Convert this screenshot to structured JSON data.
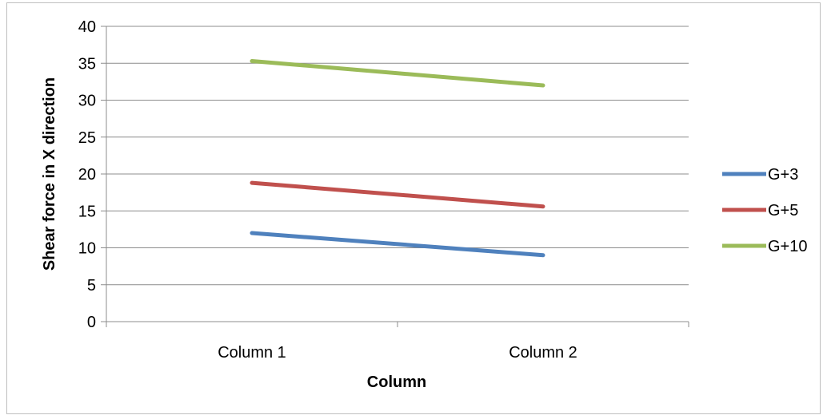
{
  "chart_data": {
    "type": "line",
    "categories": [
      "Column 1",
      "Column 2"
    ],
    "series": [
      {
        "name": "G+3",
        "values": [
          12,
          9
        ],
        "color": "#4f81bd"
      },
      {
        "name": "G+5",
        "values": [
          18.8,
          15.6
        ],
        "color": "#c0504d"
      },
      {
        "name": "G+10",
        "values": [
          35.3,
          32
        ],
        "color": "#9bbb59"
      }
    ],
    "xlabel": "Column",
    "ylabel": "Shear force in X direction",
    "ylim": [
      0,
      40
    ],
    "yticks": [
      0,
      5,
      10,
      15,
      20,
      25,
      30,
      35,
      40
    ],
    "grid": true,
    "legend_position": "right"
  }
}
